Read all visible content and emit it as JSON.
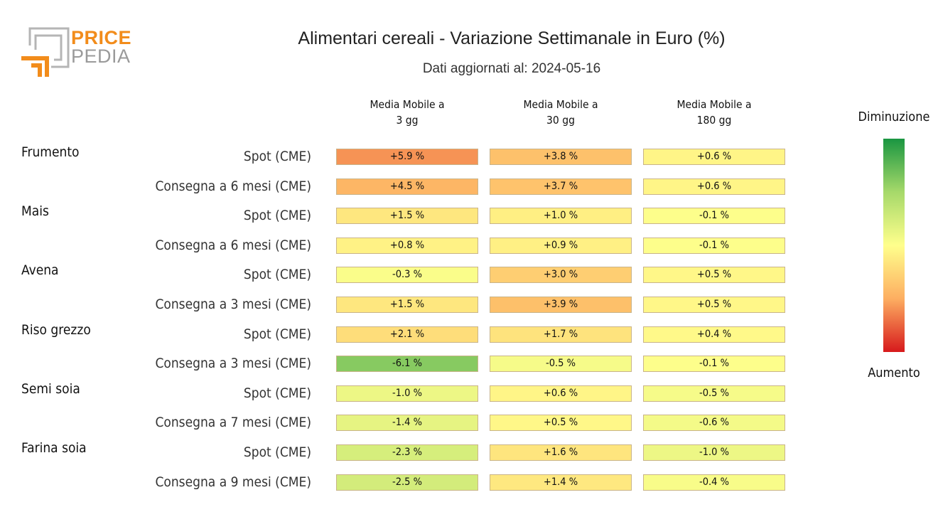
{
  "logo": {
    "top_text": "PRICE",
    "bottom_text": "PEDIA"
  },
  "title": "Alimentari cereali - Variazione Settimanale in Euro (%)",
  "subtitle": "Dati aggiornati al: 2024-05-16",
  "columns": [
    "Media Mobile a\n3 gg",
    "Media Mobile a\n30 gg",
    "Media Mobile a\n180 gg"
  ],
  "legend": {
    "top": "Diminuzione",
    "bottom": "Aumento"
  },
  "colors": {
    "low": "#d7191c",
    "mid": "#ffff8c",
    "high": "#1a9641",
    "scale_mid_orange": "#fdae61",
    "scale_mid_green": "#a6d96a"
  },
  "chart_data": {
    "type": "heatmap",
    "title": "Alimentari cereali - Variazione Settimanale in Euro (%)",
    "columns": [
      "Media Mobile a 3 gg",
      "Media Mobile a 30 gg",
      "Media Mobile a 180 gg"
    ],
    "products": [
      "Frumento",
      "Mais",
      "Avena",
      "Riso grezzo",
      "Semi soia",
      "Farina soia"
    ],
    "rows": [
      {
        "product": "Frumento",
        "contract": "Spot (CME)",
        "values": [
          5.9,
          3.8,
          0.6
        ],
        "labels": [
          "+5.9 %",
          "+3.8 %",
          "+0.6 %"
        ]
      },
      {
        "product": "",
        "contract": "Consegna a 6 mesi (CME)",
        "values": [
          4.5,
          3.7,
          0.6
        ],
        "labels": [
          "+4.5 %",
          "+3.7 %",
          "+0.6 %"
        ]
      },
      {
        "product": "Mais",
        "contract": "Spot (CME)",
        "values": [
          1.5,
          1.0,
          -0.1
        ],
        "labels": [
          "+1.5 %",
          "+1.0 %",
          "-0.1 %"
        ]
      },
      {
        "product": "",
        "contract": "Consegna a 6 mesi (CME)",
        "values": [
          0.8,
          0.9,
          -0.1
        ],
        "labels": [
          "+0.8 %",
          "+0.9 %",
          "-0.1 %"
        ]
      },
      {
        "product": "Avena",
        "contract": "Spot (CME)",
        "values": [
          -0.3,
          3.0,
          0.5
        ],
        "labels": [
          "-0.3 %",
          "+3.0 %",
          "+0.5 %"
        ]
      },
      {
        "product": "",
        "contract": "Consegna a 3 mesi (CME)",
        "values": [
          1.5,
          3.9,
          0.5
        ],
        "labels": [
          "+1.5 %",
          "+3.9 %",
          "+0.5 %"
        ]
      },
      {
        "product": "Riso grezzo",
        "contract": "Spot (CME)",
        "values": [
          2.1,
          1.7,
          0.4
        ],
        "labels": [
          "+2.1 %",
          "+1.7 %",
          "+0.4 %"
        ]
      },
      {
        "product": "",
        "contract": "Consegna a 3 mesi (CME)",
        "values": [
          -6.1,
          -0.5,
          -0.1
        ],
        "labels": [
          "-6.1 %",
          "-0.5 %",
          "-0.1 %"
        ]
      },
      {
        "product": "Semi soia",
        "contract": "Spot (CME)",
        "values": [
          -1.0,
          0.6,
          -0.5
        ],
        "labels": [
          "-1.0 %",
          "+0.6 %",
          "-0.5 %"
        ]
      },
      {
        "product": "",
        "contract": "Consegna a 7 mesi (CME)",
        "values": [
          -1.4,
          0.5,
          -0.6
        ],
        "labels": [
          "-1.4 %",
          "+0.5 %",
          "-0.6 %"
        ]
      },
      {
        "product": "Farina soia",
        "contract": "Spot (CME)",
        "values": [
          -2.3,
          1.6,
          -1.0
        ],
        "labels": [
          "-2.3 %",
          "+1.6 %",
          "-1.0 %"
        ]
      },
      {
        "product": "",
        "contract": "Consegna a 9 mesi (CME)",
        "values": [
          -2.5,
          1.4,
          -0.4
        ],
        "labels": [
          "-2.5 %",
          "+1.4 %",
          "-0.4 %"
        ]
      }
    ],
    "color_scale": {
      "min_label": "Aumento",
      "max_label": "Diminuzione"
    }
  }
}
